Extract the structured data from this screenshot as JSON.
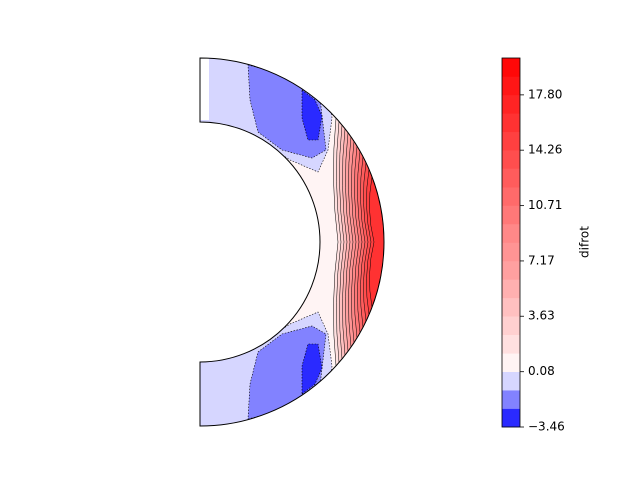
{
  "chart_data": {
    "type": "contourf",
    "colorbar_label": "difrot",
    "levels": [
      -3.46,
      -2.28,
      -1.1,
      0.08,
      1.26,
      2.45,
      3.63,
      4.81,
      5.99,
      7.17,
      8.35,
      9.53,
      10.71,
      11.89,
      13.08,
      14.26,
      15.44,
      16.62,
      17.8,
      18.98,
      20.16
    ],
    "colors": [
      "#2a2aff",
      "#8282ff",
      "#d6d6ff",
      "#fff4f4",
      "#ffe0e0",
      "#ffd0d0",
      "#ffc0c0",
      "#ffb0b0",
      "#ffa0a0",
      "#ff9494",
      "#ff8888",
      "#ff7878",
      "#ff6a6a",
      "#ff5c5c",
      "#ff4e4e",
      "#ff4040",
      "#ff3232",
      "#ff2424",
      "#ff1616",
      "#ff0808"
    ],
    "clim": [
      -3.46,
      20.16
    ],
    "cticks": [
      {
        "value": -3.46,
        "label": "−3.46"
      },
      0.08,
      3.63,
      7.17,
      10.71,
      14.26,
      {
        "value": 17.8,
        "label": "17.80"
      }
    ]
  }
}
